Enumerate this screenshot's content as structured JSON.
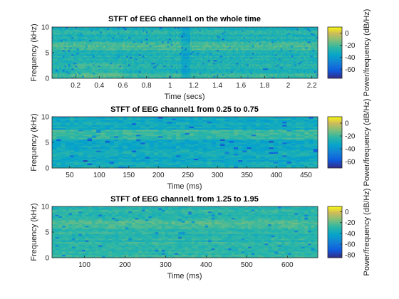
{
  "chart_data": [
    {
      "type": "heatmap",
      "title": "STFT of EEG channel1 on the whole time",
      "xlabel": "Time (secs)",
      "ylabel": "Frequency (kHz)",
      "colorbar_label": "Power/frequency (dB/Hz)",
      "xlim": [
        0.0,
        2.25
      ],
      "ylim": [
        0,
        10
      ],
      "xticks": [
        0.2,
        0.4,
        0.6,
        0.8,
        1,
        1.2,
        1.4,
        1.6,
        1.8,
        2,
        2.2
      ],
      "yticks": [
        0,
        5,
        10
      ],
      "clim": [
        -75,
        10
      ],
      "cticks": [
        0,
        -20,
        -40,
        -60
      ],
      "colormap": "parula"
    },
    {
      "type": "heatmap",
      "title": "STFT of EEG channel1 from 0.25 to 0.75",
      "xlabel": "Time (ms)",
      "ylabel": "Frequency (kHz)",
      "colorbar_label": "Power/frequency (dB/Hz)",
      "xlim": [
        20,
        470
      ],
      "ylim": [
        0,
        10
      ],
      "xticks": [
        50,
        100,
        150,
        200,
        250,
        300,
        350,
        400,
        450
      ],
      "yticks": [
        0,
        5,
        10
      ],
      "clim": [
        -70,
        10
      ],
      "cticks": [
        0,
        -20,
        -40,
        -60
      ],
      "colormap": "parula"
    },
    {
      "type": "heatmap",
      "title": "STFT of EEG channel1 from 1.25 to 1.95",
      "xlabel": "Time (ms)",
      "ylabel": "Frequency (kHz)",
      "colorbar_label": "Power/frequency (dB/Hz)",
      "xlim": [
        20,
        675
      ],
      "ylim": [
        0,
        10
      ],
      "xticks": [
        100,
        200,
        300,
        400,
        500,
        600
      ],
      "yticks": [
        0,
        5,
        10
      ],
      "clim": [
        -85,
        10
      ],
      "cticks": [
        0,
        -20,
        -40,
        -60,
        -80
      ],
      "colormap": "parula"
    }
  ]
}
